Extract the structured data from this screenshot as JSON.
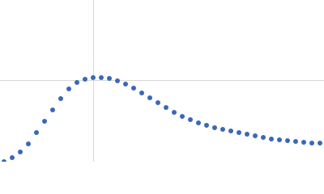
{
  "chart_data": {
    "type": "scatter",
    "x": [
      0.075,
      0.225,
      0.375,
      0.525,
      0.675,
      0.825,
      0.975,
      1.125,
      1.275,
      1.425,
      1.575,
      1.725,
      1.875,
      2.025,
      2.175,
      2.325,
      2.475,
      2.625,
      2.775,
      2.925,
      3.075,
      3.225,
      3.375,
      3.525,
      3.675,
      3.825,
      3.975,
      4.125,
      4.275,
      4.425,
      4.575,
      4.725,
      4.875,
      5.025,
      5.175,
      5.325,
      5.475,
      5.625,
      5.775,
      5.925
    ],
    "values": [
      0.0,
      0.055,
      0.132,
      0.242,
      0.396,
      0.55,
      0.704,
      0.858,
      0.99,
      1.078,
      1.122,
      1.144,
      1.144,
      1.133,
      1.1,
      1.056,
      1.001,
      0.935,
      0.869,
      0.803,
      0.737,
      0.671,
      0.616,
      0.572,
      0.528,
      0.495,
      0.462,
      0.44,
      0.418,
      0.396,
      0.374,
      0.352,
      0.33,
      0.308,
      0.297,
      0.286,
      0.275,
      0.264,
      0.253,
      0.253
    ],
    "color": "#3a68b8",
    "xlim": [
      0,
      6
    ],
    "ylim": [
      0,
      2.2
    ],
    "xgrid": [
      1.732
    ],
    "ygrid": [
      1.104
    ]
  }
}
